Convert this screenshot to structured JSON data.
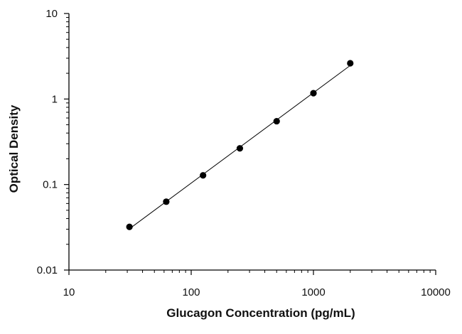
{
  "chart_data": {
    "type": "scatter",
    "xlabel": "Glucagon Concentration (pg/mL)",
    "ylabel": "Optical Density",
    "x_scale": "log",
    "y_scale": "log",
    "xlim": [
      10,
      10000
    ],
    "ylim": [
      0.01,
      10
    ],
    "x_ticks": [
      "10",
      "100",
      "1000",
      "10000"
    ],
    "y_ticks": [
      "10",
      "1",
      "0.1",
      "0.01"
    ],
    "grid": false,
    "series": [
      {
        "x": [
          31.25,
          62.5,
          125,
          250,
          500,
          1000,
          2000
        ],
        "y": [
          0.032,
          0.063,
          0.128,
          0.265,
          0.55,
          1.17,
          2.62
        ],
        "marker": "filled-circle",
        "fit_line": true,
        "color": "#000000"
      }
    ]
  }
}
